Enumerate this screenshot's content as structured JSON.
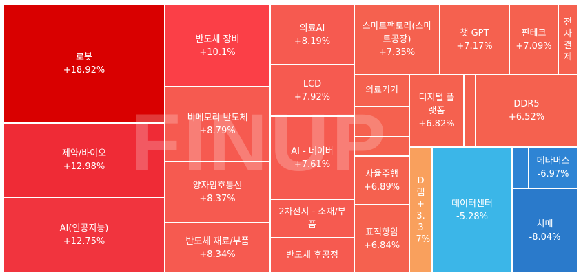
{
  "watermark": "FINUP",
  "tiles": [
    {
      "name": "로봇",
      "change": "+18.92%",
      "color": "#d90000"
    },
    {
      "name": "제약/바이오",
      "change": "+12.98%",
      "color": "#ef2b36"
    },
    {
      "name": "AI(인공지능)",
      "change": "+12.75%",
      "color": "#f1343e"
    },
    {
      "name": "반도체 장비",
      "change": "+10.1%",
      "color": "#fb3f47"
    },
    {
      "name": "비메모리 반도체",
      "change": "+8.79%",
      "color": "#f65a50"
    },
    {
      "name": "양자암호통신",
      "change": "+8.37%",
      "color": "#f65a50"
    },
    {
      "name": "반도체 재료/부품",
      "change": "+8.34%",
      "color": "#f65a50"
    },
    {
      "name": "의료AI",
      "change": "+8.19%",
      "color": "#f65a50"
    },
    {
      "name": "LCD",
      "change": "+7.92%",
      "color": "#f65a50"
    },
    {
      "name": "AI - 네이버",
      "change": "+7.61%",
      "color": "#f65a50"
    },
    {
      "name": "2차전지 - 소재/부품",
      "change": "",
      "color": "#f65a50"
    },
    {
      "name": "반도체 후공정",
      "change": "",
      "color": "#f65a50"
    },
    {
      "name": "스마트팩토리(스마트공장)",
      "change": "+7.35%",
      "color": "#f5614f"
    },
    {
      "name": "챗 GPT",
      "change": "+7.17%",
      "color": "#f5614f"
    },
    {
      "name": "핀테크",
      "change": "+7.09%",
      "color": "#f5614f"
    },
    {
      "name": "전자결제",
      "change": "",
      "color": "#f5614f"
    },
    {
      "name": "의료기기",
      "change": "",
      "color": "#f5614f"
    },
    {
      "name": "디지털 플랫폼",
      "change": "+6.82%",
      "color": "#f5614f"
    },
    {
      "name": "DDR5",
      "change": "+6.52%",
      "color": "#f5614f"
    },
    {
      "name": "자율주행",
      "change": "+6.89%",
      "color": "#f5614f"
    },
    {
      "name": "표적항암",
      "change": "+6.84%",
      "color": "#f5614f"
    },
    {
      "name": "D램",
      "change": "+3.37%",
      "color": "#f9a05d"
    },
    {
      "name": "데이터센터",
      "change": "-5.28%",
      "color": "#3bb6e8"
    },
    {
      "name": "메타버스",
      "change": "-6.97%",
      "color": "#2e84d4"
    },
    {
      "name": "치매",
      "change": "-8.04%",
      "color": "#2a7acb"
    },
    {
      "name": "",
      "change": "",
      "color": "#f5614f"
    },
    {
      "name": "",
      "change": "",
      "color": "#f5614f"
    },
    {
      "name": "",
      "change": "",
      "color": "#f5614f"
    },
    {
      "name": "",
      "change": "",
      "color": "#f5614f"
    },
    {
      "name": "",
      "change": "",
      "color": "#f5614f"
    },
    {
      "name": "",
      "change": "",
      "color": "#2e84d4"
    }
  ]
}
